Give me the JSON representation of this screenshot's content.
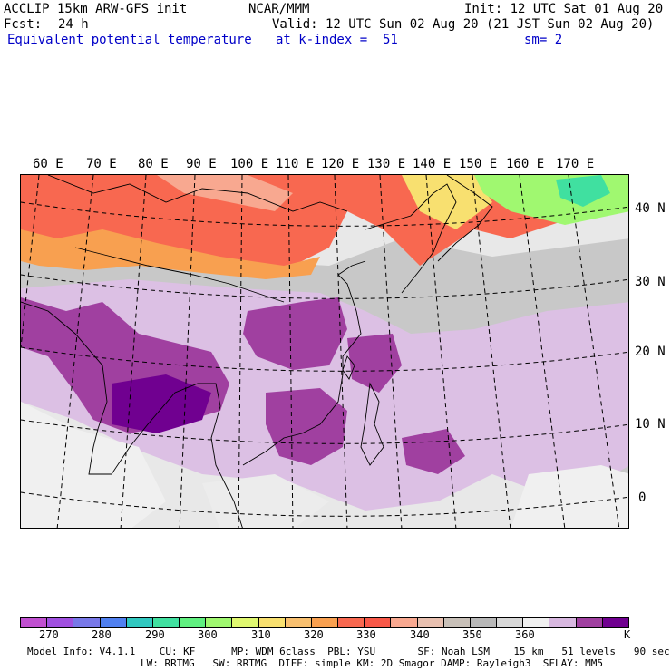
{
  "header": {
    "model": "ACCLIP 15km ARW-GFS init",
    "center": "NCAR/MMM",
    "init": "Init: 12 UTC Sat 01 Aug 20",
    "fcst_label": "Fcst:",
    "fcst_value": "24 h",
    "valid": "Valid: 12 UTC Sun 02 Aug 20 (21 JST Sun 02 Aug 20)",
    "field": "Equivalent potential temperature",
    "level": "at k-index =  51",
    "smooth": "sm= 2"
  },
  "map": {
    "lon_labels": [
      "60 E",
      "70 E",
      "80 E",
      "90 E",
      "100 E",
      "110 E",
      "120 E",
      "130 E",
      "140 E",
      "150 E",
      "160 E",
      "170 E"
    ],
    "lat_labels": [
      "40 N",
      "30 N",
      "20 N",
      "10 N",
      "0"
    ]
  },
  "colorbar": {
    "colors": [
      "#c050d0",
      "#a050e0",
      "#7878e8",
      "#5080f0",
      "#30c8c0",
      "#40e0a0",
      "#60f080",
      "#a0f870",
      "#e0f870",
      "#f8e070",
      "#f8c070",
      "#f8a050",
      "#f86850",
      "#f85848",
      "#f8a890",
      "#e8c0b0",
      "#c8c0b8",
      "#b8b8b8",
      "#d8d8d8",
      "#f0f0f0",
      "#d8b8e0",
      "#a040a0",
      "#700090"
    ],
    "labels": [
      "270",
      "280",
      "290",
      "300",
      "310",
      "320",
      "330",
      "340",
      "350",
      "360"
    ],
    "unit": "K"
  },
  "footer": {
    "line1": "Model Info: V4.1.1    CU: KF      MP: WDM 6class  PBL: YSU       SF: Noah LSM    15 km   51 levels   90 sec",
    "line2": "LW: RRTMG   SW: RRTMG  DIFF: simple KM: 2D Smagor DAMP: Rayleigh3  SFLAY: MM5"
  }
}
